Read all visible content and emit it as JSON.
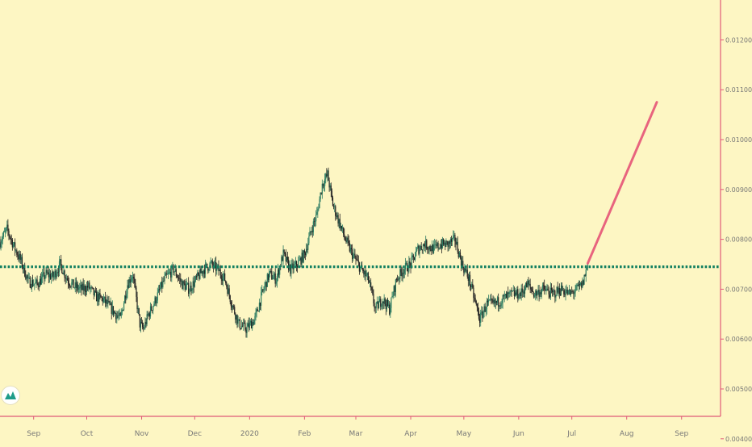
{
  "chart_data": {
    "type": "candlestick",
    "title": "",
    "xlabel": "",
    "ylabel": "",
    "grid": false,
    "ylim": [
      0.0039,
      0.0128
    ],
    "y_ticks": [
      "0.012000",
      "0.011000",
      "0.010000",
      "0.009000",
      "0.008000",
      "0.007000",
      "0.006000",
      "0.005000",
      "0.004000"
    ],
    "y_tick_values": [
      0.012,
      0.011,
      0.01,
      0.009,
      0.008,
      0.007,
      0.006,
      0.005,
      0.004
    ],
    "x_ticks": [
      "Sep",
      "Oct",
      "Nov",
      "Dec",
      "2020",
      "Feb",
      "Mar",
      "Apr",
      "May",
      "Jun",
      "Jul",
      "Aug",
      "Sep"
    ],
    "x_tick_dates": [
      "2019-09-01",
      "2019-10-01",
      "2019-11-01",
      "2019-12-01",
      "2020-01-01",
      "2020-02-01",
      "2020-03-01",
      "2020-04-01",
      "2020-05-01",
      "2020-06-01",
      "2020-07-01",
      "2020-08-01",
      "2020-09-01"
    ],
    "x_range": [
      "2019-08-13",
      "2020-09-23"
    ],
    "support_level": 0.00745,
    "projection": {
      "from": [
        "2020-07-10",
        0.00752
      ],
      "to": [
        "2020-08-18",
        0.01075
      ]
    },
    "price_path": [
      [
        "2019-08-13",
        0.00795
      ],
      [
        "2019-08-17",
        0.0082
      ],
      [
        "2019-08-21",
        0.00785
      ],
      [
        "2019-08-25",
        0.00755
      ],
      [
        "2019-08-29",
        0.00715
      ],
      [
        "2019-09-03",
        0.0071
      ],
      [
        "2019-09-08",
        0.0073
      ],
      [
        "2019-09-12",
        0.00725
      ],
      [
        "2019-09-16",
        0.0075
      ],
      [
        "2019-09-20",
        0.0072
      ],
      [
        "2019-09-24",
        0.00705
      ],
      [
        "2019-09-28",
        0.007
      ],
      [
        "2019-10-02",
        0.00705
      ],
      [
        "2019-10-06",
        0.00685
      ],
      [
        "2019-10-10",
        0.0068
      ],
      [
        "2019-10-15",
        0.0066
      ],
      [
        "2019-10-20",
        0.0064
      ],
      [
        "2019-10-24",
        0.0071
      ],
      [
        "2019-10-27",
        0.0073
      ],
      [
        "2019-10-31",
        0.0063
      ],
      [
        "2019-11-02",
        0.0062
      ],
      [
        "2019-11-05",
        0.0065
      ],
      [
        "2019-11-09",
        0.0068
      ],
      [
        "2019-11-14",
        0.0072
      ],
      [
        "2019-11-19",
        0.0074
      ],
      [
        "2019-11-24",
        0.0071
      ],
      [
        "2019-11-28",
        0.007
      ],
      [
        "2019-12-02",
        0.0072
      ],
      [
        "2019-12-06",
        0.0074
      ],
      [
        "2019-12-10",
        0.0075
      ],
      [
        "2019-12-14",
        0.0074
      ],
      [
        "2019-12-18",
        0.0072
      ],
      [
        "2019-12-22",
        0.0067
      ],
      [
        "2019-12-26",
        0.0063
      ],
      [
        "2019-12-30",
        0.0062
      ],
      [
        "2020-01-04",
        0.0064
      ],
      [
        "2020-01-08",
        0.0069
      ],
      [
        "2020-01-12",
        0.0073
      ],
      [
        "2020-01-16",
        0.0072
      ],
      [
        "2020-01-20",
        0.0077
      ],
      [
        "2020-01-24",
        0.0074
      ],
      [
        "2020-01-28",
        0.0075
      ],
      [
        "2020-02-01",
        0.0077
      ],
      [
        "2020-02-05",
        0.0082
      ],
      [
        "2020-02-08",
        0.0085
      ],
      [
        "2020-02-11",
        0.0091
      ],
      [
        "2020-02-14",
        0.0093
      ],
      [
        "2020-02-17",
        0.0087
      ],
      [
        "2020-02-20",
        0.0084
      ],
      [
        "2020-02-24",
        0.008
      ],
      [
        "2020-02-28",
        0.0077
      ],
      [
        "2020-03-04",
        0.0074
      ],
      [
        "2020-03-08",
        0.0072
      ],
      [
        "2020-03-12",
        0.0066
      ],
      [
        "2020-03-16",
        0.0068
      ],
      [
        "2020-03-20",
        0.0066
      ],
      [
        "2020-03-24",
        0.0072
      ],
      [
        "2020-03-28",
        0.0074
      ],
      [
        "2020-04-01",
        0.0075
      ],
      [
        "2020-04-05",
        0.0078
      ],
      [
        "2020-04-09",
        0.0079
      ],
      [
        "2020-04-14",
        0.0078
      ],
      [
        "2020-04-18",
        0.0079
      ],
      [
        "2020-04-22",
        0.0079
      ],
      [
        "2020-04-26",
        0.008
      ],
      [
        "2020-04-30",
        0.0075
      ],
      [
        "2020-05-04",
        0.0072
      ],
      [
        "2020-05-07",
        0.0068
      ],
      [
        "2020-05-10",
        0.0064
      ],
      [
        "2020-05-14",
        0.0067
      ],
      [
        "2020-05-18",
        0.0067
      ],
      [
        "2020-05-23",
        0.0068
      ],
      [
        "2020-05-28",
        0.0069
      ],
      [
        "2020-06-02",
        0.0069
      ],
      [
        "2020-06-06",
        0.0071
      ],
      [
        "2020-06-10",
        0.0069
      ],
      [
        "2020-06-15",
        0.007
      ],
      [
        "2020-06-20",
        0.0069
      ],
      [
        "2020-06-25",
        0.007
      ],
      [
        "2020-06-30",
        0.0069
      ],
      [
        "2020-07-04",
        0.007
      ],
      [
        "2020-07-07",
        0.0071
      ],
      [
        "2020-07-10",
        0.0075
      ]
    ]
  },
  "branding": {
    "logo_name": "tradingview-logo"
  },
  "colors": {
    "background": "#fdf6c3",
    "axis": "#e05a78",
    "tick_text": "#777777",
    "support_line": "#138061",
    "projection_line": "#e8647e",
    "candle_up": "#2c7c62",
    "candle_down": "#222222",
    "logo_green": "#1f9c8a"
  }
}
